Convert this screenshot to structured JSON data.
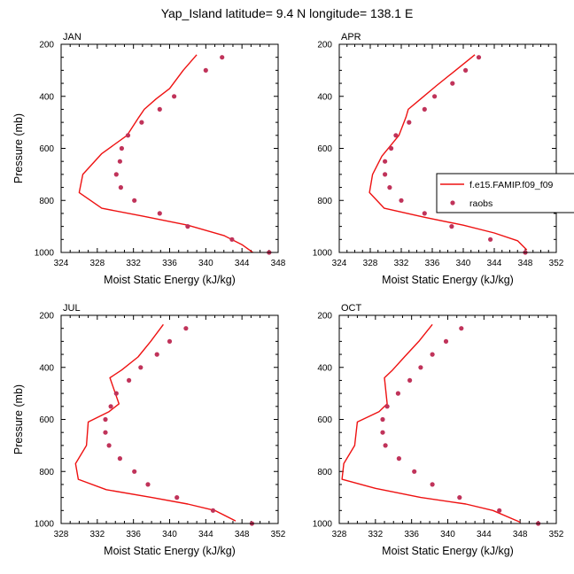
{
  "figure": {
    "title": "Yap_Island  latitude= 9.4 N longitude= 138.1 E"
  },
  "colors": {
    "model_line": "#ee1111",
    "obs_marker": "#c0335a",
    "axis": "#000000",
    "background": "#ffffff"
  },
  "legend": {
    "entries": [
      {
        "label": "f.e15.FAMIP.f09_f09",
        "kind": "line"
      },
      {
        "label": "raobs",
        "kind": "marker"
      }
    ],
    "location": "right of APR panel"
  },
  "chart_data": [
    {
      "type": "line",
      "panel": "JAN",
      "title": "JAN",
      "xlabel": "Moist Static Energy (kJ/kg)",
      "ylabel": "Pressure (mb)",
      "xlim": [
        324,
        348
      ],
      "xticks": [
        324,
        328,
        332,
        336,
        340,
        344,
        348
      ],
      "ylim": [
        1000,
        200
      ],
      "yticks": [
        200,
        400,
        600,
        800,
        1000
      ],
      "series": [
        {
          "name": "f.e15.FAMIP.f09_f09",
          "style": "line",
          "points": [
            [
              339.0,
              240
            ],
            [
              337.5,
              300
            ],
            [
              336.0,
              370
            ],
            [
              334.5,
              410
            ],
            [
              333.2,
              450
            ],
            [
              332.6,
              480
            ],
            [
              331.3,
              550
            ],
            [
              328.5,
              620
            ],
            [
              326.4,
              700
            ],
            [
              326.0,
              770
            ],
            [
              328.5,
              830
            ],
            [
              333.0,
              860
            ],
            [
              338.0,
              895
            ],
            [
              342.0,
              935
            ],
            [
              344.0,
              970
            ],
            [
              345.2,
              1000
            ]
          ]
        },
        {
          "name": "raobs",
          "style": "markers",
          "points": [
            [
              341.8,
              250
            ],
            [
              340.0,
              300
            ],
            [
              336.5,
              400
            ],
            [
              334.9,
              450
            ],
            [
              332.9,
              500
            ],
            [
              331.4,
              550
            ],
            [
              330.7,
              600
            ],
            [
              330.5,
              650
            ],
            [
              330.1,
              700
            ],
            [
              330.6,
              750
            ],
            [
              332.1,
              800
            ],
            [
              334.9,
              850
            ],
            [
              338.0,
              900
            ],
            [
              342.9,
              950
            ],
            [
              347.0,
              1000
            ]
          ]
        }
      ]
    },
    {
      "type": "line",
      "panel": "APR",
      "title": "APR",
      "xlabel": "Moist Static Energy (kJ/kg)",
      "ylabel": "",
      "xlim": [
        324,
        352
      ],
      "xticks": [
        324,
        328,
        332,
        336,
        340,
        344,
        348,
        352
      ],
      "ylim": [
        1000,
        200
      ],
      "yticks": [
        200,
        400,
        600,
        800,
        1000
      ],
      "series": [
        {
          "name": "f.e15.FAMIP.f09_f09",
          "style": "line",
          "points": [
            [
              341.5,
              240
            ],
            [
              339.0,
              300
            ],
            [
              336.5,
              360
            ],
            [
              334.5,
              410
            ],
            [
              332.9,
              450
            ],
            [
              332.6,
              480
            ],
            [
              331.7,
              550
            ],
            [
              329.5,
              630
            ],
            [
              328.3,
              700
            ],
            [
              327.9,
              770
            ],
            [
              329.8,
              830
            ],
            [
              335.0,
              865
            ],
            [
              340.0,
              895
            ],
            [
              344.0,
              925
            ],
            [
              347.0,
              955
            ],
            [
              348.2,
              990
            ]
          ]
        },
        {
          "name": "raobs",
          "style": "markers",
          "points": [
            [
              342.0,
              250
            ],
            [
              340.3,
              300
            ],
            [
              338.6,
              350
            ],
            [
              336.3,
              400
            ],
            [
              335.0,
              450
            ],
            [
              333.0,
              500
            ],
            [
              331.3,
              550
            ],
            [
              330.7,
              600
            ],
            [
              329.9,
              650
            ],
            [
              329.9,
              700
            ],
            [
              330.5,
              750
            ],
            [
              332.0,
              800
            ],
            [
              335.0,
              850
            ],
            [
              338.5,
              900
            ],
            [
              343.5,
              950
            ],
            [
              348.0,
              1000
            ]
          ]
        }
      ]
    },
    {
      "type": "line",
      "panel": "JUL",
      "title": "JUL",
      "xlabel": "Moist Static Energy (kJ/kg)",
      "ylabel": "Pressure (mb)",
      "xlim": [
        328,
        352
      ],
      "xticks": [
        328,
        332,
        336,
        340,
        344,
        348,
        352
      ],
      "ylim": [
        1000,
        200
      ],
      "yticks": [
        200,
        400,
        600,
        800,
        1000
      ],
      "series": [
        {
          "name": "f.e15.FAMIP.f09_f09",
          "style": "line",
          "points": [
            [
              339.3,
              235
            ],
            [
              337.9,
              300
            ],
            [
              336.5,
              360
            ],
            [
              334.7,
              410
            ],
            [
              333.4,
              440
            ],
            [
              334.4,
              540
            ],
            [
              333.3,
              570
            ],
            [
              331.0,
              610
            ],
            [
              330.8,
              700
            ],
            [
              329.6,
              770
            ],
            [
              329.9,
              830
            ],
            [
              333.0,
              870
            ],
            [
              338.0,
              900
            ],
            [
              342.0,
              925
            ],
            [
              345.0,
              950
            ],
            [
              347.3,
              990
            ]
          ]
        },
        {
          "name": "raobs",
          "style": "markers",
          "points": [
            [
              341.8,
              250
            ],
            [
              340.0,
              300
            ],
            [
              338.6,
              350
            ],
            [
              336.8,
              400
            ],
            [
              335.5,
              450
            ],
            [
              334.1,
              500
            ],
            [
              333.5,
              550
            ],
            [
              332.9,
              600
            ],
            [
              332.9,
              650
            ],
            [
              333.3,
              700
            ],
            [
              334.5,
              750
            ],
            [
              336.1,
              800
            ],
            [
              337.6,
              850
            ],
            [
              340.8,
              900
            ],
            [
              344.8,
              950
            ],
            [
              349.1,
              1000
            ]
          ]
        }
      ]
    },
    {
      "type": "line",
      "panel": "OCT",
      "title": "OCT",
      "xlabel": "Moist Static Energy (kJ/kg)",
      "ylabel": "",
      "xlim": [
        328,
        352
      ],
      "xticks": [
        328,
        332,
        336,
        340,
        344,
        348,
        352
      ],
      "ylim": [
        1000,
        200
      ],
      "yticks": [
        200,
        400,
        600,
        800,
        1000
      ],
      "series": [
        {
          "name": "f.e15.FAMIP.f09_f09",
          "style": "line",
          "points": [
            [
              338.3,
              235
            ],
            [
              336.8,
              300
            ],
            [
              335.2,
              360
            ],
            [
              333.9,
              410
            ],
            [
              333.0,
              440
            ],
            [
              333.3,
              540
            ],
            [
              332.4,
              570
            ],
            [
              330.0,
              610
            ],
            [
              329.7,
              700
            ],
            [
              328.5,
              770
            ],
            [
              328.3,
              830
            ],
            [
              332.0,
              865
            ],
            [
              337.0,
              900
            ],
            [
              342.0,
              925
            ],
            [
              345.0,
              950
            ],
            [
              348.0,
              995
            ]
          ]
        },
        {
          "name": "raobs",
          "style": "markers",
          "points": [
            [
              341.5,
              250
            ],
            [
              339.8,
              300
            ],
            [
              338.3,
              350
            ],
            [
              337.0,
              400
            ],
            [
              335.8,
              450
            ],
            [
              334.5,
              500
            ],
            [
              333.3,
              550
            ],
            [
              332.8,
              600
            ],
            [
              332.8,
              650
            ],
            [
              333.1,
              700
            ],
            [
              334.6,
              750
            ],
            [
              336.3,
              800
            ],
            [
              338.3,
              850
            ],
            [
              341.3,
              900
            ],
            [
              345.7,
              950
            ],
            [
              350.0,
              1000
            ]
          ]
        }
      ]
    }
  ]
}
